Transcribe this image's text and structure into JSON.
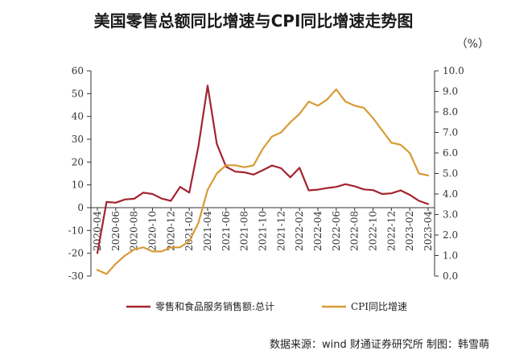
{
  "title": "美国零售总额同比增速与CPI同比增速走势图",
  "unit": "（%）",
  "source": "数据来源：wind  财通证券研究所  制图：韩雪萌",
  "colors": {
    "retail": "#a3242f",
    "cpi": "#d99a36",
    "axis": "#333333",
    "plot_bg": "#eef3f8"
  },
  "chart_data": {
    "type": "line",
    "x": [
      "2020-04",
      "2020-05",
      "2020-06",
      "2020-07",
      "2020-08",
      "2020-09",
      "2020-10",
      "2020-11",
      "2020-12",
      "2021-01",
      "2021-02",
      "2021-03",
      "2021-04",
      "2021-05",
      "2021-06",
      "2021-07",
      "2021-08",
      "2021-09",
      "2021-10",
      "2021-11",
      "2021-12",
      "2022-01",
      "2022-02",
      "2022-03",
      "2022-04",
      "2022-05",
      "2022-06",
      "2022-07",
      "2022-08",
      "2022-09",
      "2022-10",
      "2022-11",
      "2022-12",
      "2023-01",
      "2023-02",
      "2023-03",
      "2023-04"
    ],
    "x_tick_labels": [
      "2020-04",
      "2020-06",
      "2020-08",
      "2020-10",
      "2020-12",
      "2021-02",
      "2021-04",
      "2021-06",
      "2021-08",
      "2021-10",
      "2021-12",
      "2022-02",
      "2022-04",
      "2022-06",
      "2022-08",
      "2022-10",
      "2022-12",
      "2023-02",
      "2023-04"
    ],
    "y_left_ticks": [
      60,
      50,
      40,
      30,
      20,
      10,
      0,
      -10,
      -20,
      -30
    ],
    "y_right_ticks": [
      "10.0",
      "9.0",
      "8.0",
      "7.0",
      "6.0",
      "5.0",
      "4.0",
      "3.0",
      "2.0",
      "1.0",
      "0.0"
    ],
    "ylim_left": [
      -30,
      60
    ],
    "ylim_right": [
      0,
      10
    ],
    "series": [
      {
        "name": "零售和食品服务销售额:总计",
        "axis": "left",
        "values": [
          -19.9,
          2.5,
          2.2,
          3.6,
          3.9,
          6.6,
          6.0,
          4.0,
          3.0,
          9.1,
          6.6,
          27.0,
          53.5,
          28.0,
          18.0,
          15.8,
          15.5,
          14.5,
          16.4,
          18.5,
          17.3,
          13.3,
          17.5,
          7.6,
          7.9,
          8.6,
          9.1,
          10.3,
          9.4,
          8.0,
          7.7,
          6.0,
          6.3,
          7.6,
          5.6,
          3.0,
          1.6
        ]
      },
      {
        "name": "CPI同比增速",
        "axis": "right",
        "values": [
          0.3,
          0.1,
          0.6,
          1.0,
          1.3,
          1.4,
          1.2,
          1.2,
          1.4,
          1.4,
          1.7,
          2.6,
          4.2,
          5.0,
          5.4,
          5.4,
          5.3,
          5.4,
          6.2,
          6.8,
          7.0,
          7.5,
          7.9,
          8.5,
          8.3,
          8.6,
          9.1,
          8.5,
          8.3,
          8.2,
          7.7,
          7.1,
          6.5,
          6.4,
          6.0,
          5.0,
          4.9
        ]
      }
    ]
  }
}
